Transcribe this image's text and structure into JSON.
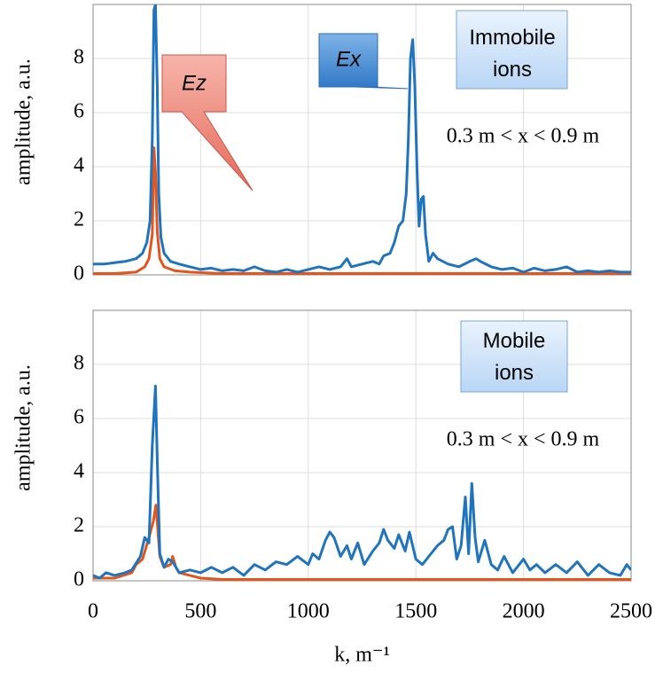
{
  "chart_data": [
    {
      "type": "line",
      "ylabel": "amplitude, a.u.",
      "xlim": [
        0,
        2500
      ],
      "xticks": [
        0,
        500,
        1000,
        1500,
        2000,
        2500
      ],
      "ylim": [
        0,
        10
      ],
      "yticks": [
        0,
        2,
        4,
        6,
        8
      ],
      "grid": true,
      "annotations": [
        "Ez",
        "Ex",
        "Immobile ions",
        "0.3 m < x < 0.9 m"
      ],
      "series": [
        {
          "name": "Ex",
          "color": "#1f74bd",
          "x": [
            0,
            50,
            100,
            150,
            200,
            230,
            250,
            265,
            275,
            283,
            290,
            298,
            305,
            315,
            330,
            360,
            400,
            450,
            500,
            550,
            600,
            650,
            700,
            750,
            800,
            850,
            900,
            950,
            1000,
            1050,
            1100,
            1150,
            1180,
            1200,
            1250,
            1300,
            1330,
            1350,
            1380,
            1400,
            1420,
            1440,
            1455,
            1465,
            1475,
            1485,
            1495,
            1505,
            1515,
            1525,
            1535,
            1545,
            1560,
            1580,
            1600,
            1650,
            1700,
            1750,
            1780,
            1800,
            1850,
            1900,
            1950,
            2000,
            2050,
            2100,
            2150,
            2200,
            2250,
            2300,
            2350,
            2400,
            2450,
            2500
          ],
          "values": [
            0.4,
            0.4,
            0.45,
            0.5,
            0.6,
            0.8,
            1.2,
            2,
            5,
            9.8,
            10,
            7,
            3,
            1.4,
            0.8,
            0.5,
            0.4,
            0.3,
            0.2,
            0.25,
            0.15,
            0.2,
            0.15,
            0.3,
            0.15,
            0.1,
            0.2,
            0.1,
            0.2,
            0.3,
            0.2,
            0.3,
            0.6,
            0.3,
            0.4,
            0.5,
            0.4,
            0.7,
            0.8,
            1.2,
            1.8,
            2.0,
            3,
            5,
            8,
            8.7,
            7,
            4,
            1.8,
            2.8,
            2.9,
            1.5,
            0.5,
            0.8,
            0.6,
            0.4,
            0.3,
            0.5,
            0.6,
            0.5,
            0.3,
            0.2,
            0.25,
            0.1,
            0.25,
            0.15,
            0.2,
            0.3,
            0.1,
            0.15,
            0.1,
            0.15,
            0.1,
            0.1
          ]
        },
        {
          "name": "Ez",
          "color": "#e2561e",
          "x": [
            0,
            100,
            200,
            240,
            260,
            275,
            283,
            290,
            298,
            310,
            330,
            380,
            450,
            600,
            1000,
            1500,
            2000,
            2500
          ],
          "values": [
            0.05,
            0.05,
            0.1,
            0.3,
            0.6,
            1.5,
            4.7,
            3.8,
            1.6,
            0.6,
            0.3,
            0.15,
            0.1,
            0.05,
            0.05,
            0.05,
            0.05,
            0.05
          ]
        }
      ]
    },
    {
      "type": "line",
      "ylabel": "amplitude, a.u.",
      "xlabel": "k, m⁻¹",
      "xlim": [
        0,
        2500
      ],
      "xticks": [
        0,
        500,
        1000,
        1500,
        2000,
        2500
      ],
      "ylim": [
        0,
        10
      ],
      "yticks": [
        0,
        2,
        4,
        6,
        8
      ],
      "grid": true,
      "annotations": [
        "Mobile ions",
        "0.3 m < x < 0.9 m"
      ],
      "series": [
        {
          "name": "Ex",
          "color": "#1f74bd",
          "x": [
            0,
            30,
            60,
            100,
            150,
            180,
            220,
            240,
            260,
            275,
            290,
            300,
            310,
            330,
            350,
            370,
            400,
            450,
            500,
            550,
            600,
            650,
            700,
            750,
            800,
            850,
            900,
            950,
            1000,
            1020,
            1050,
            1080,
            1100,
            1120,
            1150,
            1180,
            1200,
            1230,
            1260,
            1300,
            1330,
            1350,
            1370,
            1400,
            1420,
            1450,
            1470,
            1500,
            1530,
            1560,
            1600,
            1630,
            1650,
            1670,
            1690,
            1710,
            1730,
            1745,
            1760,
            1775,
            1790,
            1820,
            1850,
            1880,
            1910,
            1950,
            2000,
            2030,
            2060,
            2100,
            2150,
            2200,
            2250,
            2300,
            2350,
            2400,
            2450,
            2480,
            2500
          ],
          "values": [
            0.2,
            0.1,
            0.3,
            0.2,
            0.3,
            0.4,
            0.9,
            1.6,
            1.4,
            5,
            7.2,
            4,
            1.0,
            0.5,
            0.8,
            0.7,
            0.3,
            0.4,
            0.3,
            0.5,
            0.3,
            0.5,
            0.2,
            0.6,
            0.4,
            0.7,
            0.6,
            0.9,
            0.6,
            1.0,
            0.8,
            1.5,
            1.8,
            1.6,
            0.9,
            1.3,
            0.8,
            1.4,
            0.6,
            1.1,
            1.4,
            1.9,
            1.5,
            1.2,
            1.7,
            1.1,
            1.8,
            0.8,
            0.6,
            0.9,
            1.3,
            1.5,
            1.9,
            2.0,
            0.8,
            1.3,
            3.1,
            1.0,
            3.6,
            1.6,
            0.7,
            1.5,
            0.6,
            0.4,
            0.9,
            0.3,
            0.8,
            0.4,
            0.6,
            0.3,
            0.6,
            0.3,
            0.7,
            0.2,
            0.6,
            0.3,
            0.2,
            0.6,
            0.4
          ]
        },
        {
          "name": "Ez",
          "color": "#e2561e",
          "x": [
            0,
            100,
            180,
            200,
            230,
            260,
            280,
            292,
            300,
            310,
            330,
            360,
            370,
            385,
            400,
            450,
            500,
            600,
            1000,
            2500
          ],
          "values": [
            0.1,
            0.1,
            0.3,
            0.6,
            0.8,
            1.6,
            2.2,
            2.8,
            2.0,
            0.9,
            0.5,
            0.6,
            0.9,
            0.5,
            0.3,
            0.2,
            0.1,
            0.05,
            0.05,
            0.05
          ]
        }
      ]
    }
  ]
}
